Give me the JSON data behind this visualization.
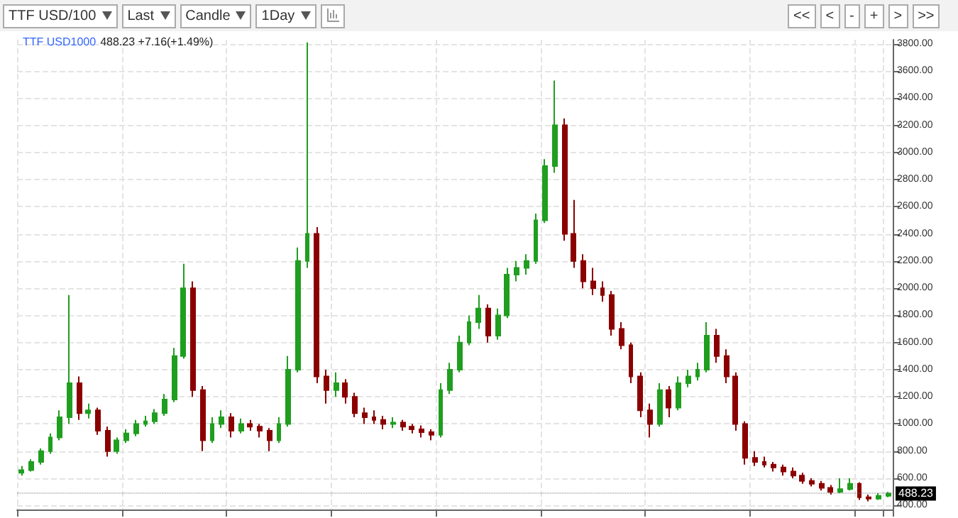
{
  "chart_data": {
    "type": "candlestick",
    "title": "TTF USD1000",
    "subtitle": "488.23 +7.16(+1.49%)",
    "annotations": [
      "TTF USD/100",
      "Last",
      "Candle",
      "1Day",
      "<<",
      "<",
      "-",
      "+",
      ">",
      ">>"
    ],
    "categories": [
      null,
      null,
      null,
      null,
      null,
      null,
      null,
      null,
      null,
      null,
      null,
      null,
      null,
      null,
      null,
      null,
      null,
      null,
      null,
      null,
      null,
      null,
      null,
      null,
      null,
      null,
      null,
      null,
      null,
      null,
      null,
      null,
      null,
      null,
      null,
      null,
      null,
      null,
      null,
      null,
      null,
      null,
      null,
      null,
      null,
      null,
      null,
      null,
      null,
      null,
      null,
      null,
      null,
      null,
      null,
      null,
      null,
      null,
      null,
      null,
      null,
      null,
      null,
      null,
      null,
      null,
      null,
      null,
      null,
      null,
      null,
      null,
      null,
      null,
      null,
      null,
      null,
      null,
      null,
      null,
      null,
      null,
      null,
      null,
      null,
      null,
      null,
      null,
      null,
      null,
      null,
      null
    ],
    "ohlc": [
      [
        640,
        690,
        620,
        660
      ],
      [
        660,
        740,
        650,
        720
      ],
      [
        720,
        820,
        700,
        800
      ],
      [
        800,
        930,
        780,
        900
      ],
      [
        900,
        1100,
        880,
        1050
      ],
      [
        1050,
        1950,
        1000,
        1300
      ],
      [
        1300,
        1350,
        1030,
        1080
      ],
      [
        1080,
        1150,
        1040,
        1100
      ],
      [
        1100,
        1120,
        920,
        950
      ],
      [
        950,
        980,
        760,
        800
      ],
      [
        800,
        900,
        780,
        880
      ],
      [
        880,
        960,
        860,
        930
      ],
      [
        930,
        1030,
        910,
        1000
      ],
      [
        1000,
        1060,
        980,
        1020
      ],
      [
        1020,
        1110,
        1000,
        1080
      ],
      [
        1080,
        1220,
        1060,
        1180
      ],
      [
        1180,
        1560,
        1160,
        1500
      ],
      [
        1500,
        2180,
        1480,
        2000
      ],
      [
        2000,
        2050,
        1200,
        1250
      ],
      [
        1250,
        1280,
        800,
        880
      ],
      [
        880,
        1050,
        860,
        1000
      ],
      [
        1000,
        1100,
        970,
        1050
      ],
      [
        1050,
        1080,
        900,
        950
      ],
      [
        950,
        1040,
        930,
        1000
      ],
      [
        1000,
        1030,
        950,
        980
      ],
      [
        980,
        1000,
        900,
        950
      ],
      [
        950,
        970,
        800,
        880
      ],
      [
        880,
        1050,
        860,
        1000
      ],
      [
        1000,
        1500,
        980,
        1400
      ],
      [
        1400,
        2300,
        1380,
        2200
      ],
      [
        2200,
        3810,
        2150,
        2400
      ],
      [
        2400,
        2450,
        1300,
        1350
      ],
      [
        1350,
        1400,
        1150,
        1250
      ],
      [
        1250,
        1380,
        1200,
        1300
      ],
      [
        1300,
        1330,
        1150,
        1200
      ],
      [
        1200,
        1230,
        1050,
        1080
      ],
      [
        1080,
        1120,
        1000,
        1050
      ],
      [
        1050,
        1100,
        1000,
        1030
      ],
      [
        1030,
        1060,
        960,
        1000
      ],
      [
        1000,
        1050,
        970,
        1010
      ],
      [
        1010,
        1030,
        950,
        980
      ],
      [
        980,
        1000,
        930,
        960
      ],
      [
        960,
        990,
        900,
        940
      ],
      [
        940,
        960,
        880,
        920
      ],
      [
        920,
        1300,
        900,
        1250
      ],
      [
        1250,
        1450,
        1220,
        1400
      ],
      [
        1400,
        1650,
        1380,
        1600
      ],
      [
        1600,
        1800,
        1580,
        1750
      ],
      [
        1750,
        1950,
        1700,
        1850
      ],
      [
        1850,
        1880,
        1600,
        1650
      ],
      [
        1650,
        1850,
        1620,
        1800
      ],
      [
        1800,
        2150,
        1780,
        2100
      ],
      [
        2100,
        2200,
        2050,
        2150
      ],
      [
        2150,
        2250,
        2100,
        2200
      ],
      [
        2200,
        2550,
        2180,
        2500
      ],
      [
        2500,
        2950,
        2480,
        2900
      ],
      [
        2900,
        3530,
        2850,
        3200
      ],
      [
        3200,
        3250,
        2350,
        2400
      ],
      [
        2400,
        2650,
        2150,
        2200
      ],
      [
        2200,
        2250,
        2000,
        2050
      ],
      [
        2050,
        2150,
        1950,
        2000
      ],
      [
        2000,
        2050,
        1900,
        1950
      ],
      [
        1950,
        1980,
        1650,
        1700
      ],
      [
        1700,
        1750,
        1550,
        1580
      ],
      [
        1580,
        1600,
        1300,
        1350
      ],
      [
        1350,
        1380,
        1050,
        1100
      ],
      [
        1100,
        1150,
        900,
        1000
      ],
      [
        1000,
        1300,
        980,
        1250
      ],
      [
        1250,
        1280,
        1050,
        1120
      ],
      [
        1120,
        1350,
        1100,
        1300
      ],
      [
        1300,
        1400,
        1270,
        1350
      ],
      [
        1350,
        1450,
        1320,
        1400
      ],
      [
        1400,
        1750,
        1380,
        1650
      ],
      [
        1650,
        1700,
        1450,
        1500
      ],
      [
        1500,
        1550,
        1300,
        1350
      ],
      [
        1350,
        1380,
        950,
        1000
      ],
      [
        1000,
        1020,
        700,
        750
      ],
      [
        750,
        800,
        690,
        720
      ],
      [
        720,
        760,
        680,
        700
      ],
      [
        700,
        720,
        650,
        680
      ],
      [
        680,
        700,
        620,
        650
      ],
      [
        650,
        680,
        600,
        620
      ],
      [
        620,
        640,
        560,
        580
      ],
      [
        580,
        600,
        540,
        560
      ],
      [
        560,
        580,
        510,
        530
      ],
      [
        530,
        550,
        480,
        500
      ],
      [
        500,
        600,
        490,
        520
      ],
      [
        520,
        600,
        510,
        560
      ],
      [
        560,
        570,
        440,
        460
      ],
      [
        460,
        480,
        430,
        450
      ],
      [
        450,
        490,
        440,
        470
      ],
      [
        470,
        500,
        460,
        488.23
      ]
    ],
    "colors": [
      "#1f9e1f",
      "#1f9e1f",
      "#1f9e1f",
      "#1f9e1f",
      "#1f9e1f",
      "#1f9e1f",
      "#8b0000",
      "#1f9e1f",
      "#8b0000",
      "#8b0000",
      "#1f9e1f",
      "#1f9e1f",
      "#1f9e1f",
      "#1f9e1f",
      "#1f9e1f",
      "#1f9e1f",
      "#1f9e1f",
      "#1f9e1f",
      "#8b0000",
      "#8b0000",
      "#1f9e1f",
      "#1f9e1f",
      "#8b0000",
      "#1f9e1f",
      "#8b0000",
      "#8b0000",
      "#8b0000",
      "#1f9e1f",
      "#1f9e1f",
      "#1f9e1f",
      "#1f9e1f",
      "#8b0000",
      "#8b0000",
      "#1f9e1f",
      "#8b0000",
      "#8b0000",
      "#8b0000",
      "#8b0000",
      "#8b0000",
      "#1f9e1f",
      "#8b0000",
      "#8b0000",
      "#8b0000",
      "#8b0000",
      "#1f9e1f",
      "#1f9e1f",
      "#1f9e1f",
      "#1f9e1f",
      "#1f9e1f",
      "#8b0000",
      "#1f9e1f",
      "#1f9e1f",
      "#1f9e1f",
      "#1f9e1f",
      "#1f9e1f",
      "#1f9e1f",
      "#1f9e1f",
      "#8b0000",
      "#8b0000",
      "#8b0000",
      "#8b0000",
      "#8b0000",
      "#8b0000",
      "#8b0000",
      "#8b0000",
      "#8b0000",
      "#8b0000",
      "#1f9e1f",
      "#8b0000",
      "#1f9e1f",
      "#1f9e1f",
      "#1f9e1f",
      "#1f9e1f",
      "#8b0000",
      "#8b0000",
      "#8b0000",
      "#8b0000",
      "#8b0000",
      "#8b0000",
      "#8b0000",
      "#8b0000",
      "#8b0000",
      "#8b0000",
      "#8b0000",
      "#8b0000",
      "#8b0000",
      "#1f9e1f",
      "#1f9e1f",
      "#8b0000",
      "#8b0000",
      "#1f9e1f",
      "#1f9e1f"
    ],
    "ylim": [
      370,
      3830
    ],
    "yticks": [
      {
        "value": 400,
        "label": "400.00"
      },
      {
        "value": 600,
        "label": "600.00"
      },
      {
        "value": 800,
        "label": "800.00"
      },
      {
        "value": 1000,
        "label": "1000.00"
      },
      {
        "value": 1200,
        "label": "1200.00"
      },
      {
        "value": 1400,
        "label": "1400.00"
      },
      {
        "value": 1600,
        "label": "1600.00"
      },
      {
        "value": 1800,
        "label": "1800.00"
      },
      {
        "value": 2000,
        "label": "2000.00"
      },
      {
        "value": 2200,
        "label": "2200.00"
      },
      {
        "value": 2400,
        "label": "2400.00"
      },
      {
        "value": 2600,
        "label": "2600.00"
      },
      {
        "value": 2800,
        "label": "2800.00"
      },
      {
        "value": 3000,
        "label": "3000.00"
      },
      {
        "value": 3200,
        "label": "3200.00"
      },
      {
        "value": 3400,
        "label": "3400.00"
      },
      {
        "value": 3600,
        "label": "3600.00"
      },
      {
        "value": 3800,
        "label": "3800.00"
      }
    ],
    "ref_lines": [
      {
        "axis": "y",
        "value": 488.23,
        "label": "488.23"
      }
    ],
    "grid": true,
    "tick_labels": "y"
  }
}
